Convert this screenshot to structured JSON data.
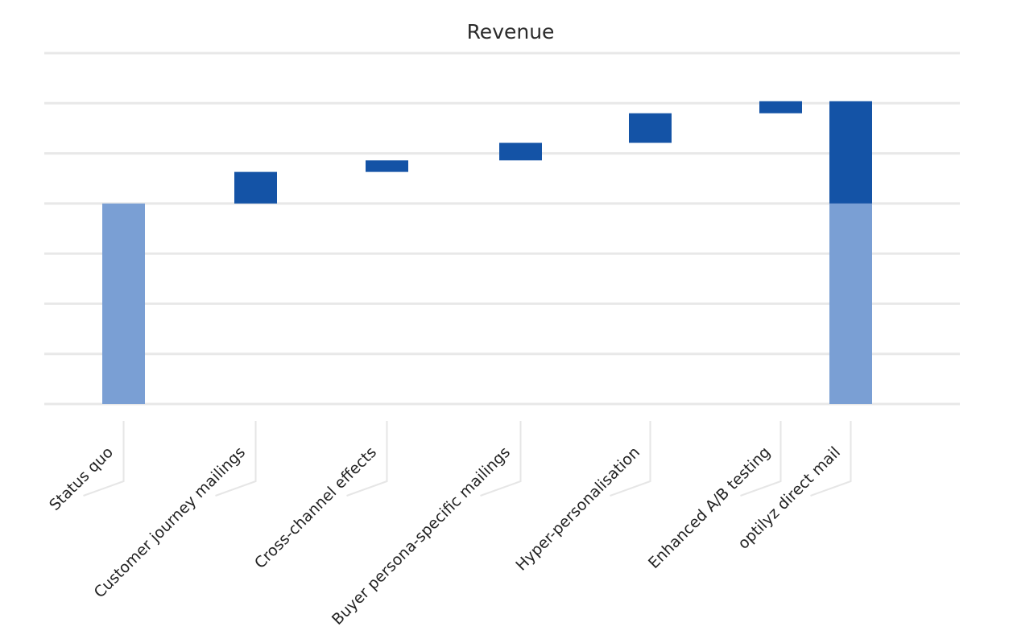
{
  "chart_data": {
    "type": "bar",
    "subtype": "waterfall",
    "title": "Revenue",
    "xlabel": "",
    "ylabel": "",
    "categories": [
      "Status quo",
      "Customer journey mailings",
      "Cross-channel effects",
      "Buyer persona-specific mailings",
      "Hyper-personalisation",
      "Enhanced A/B testing",
      "optilyz direct mail"
    ],
    "steps": [
      {
        "label": "Status quo",
        "kind": "base",
        "value": 4.0
      },
      {
        "label": "Customer journey mailings",
        "kind": "increment",
        "value": 0.63
      },
      {
        "label": "Cross-channel effects",
        "kind": "increment",
        "value": 0.23
      },
      {
        "label": "Buyer persona-specific mailings",
        "kind": "increment",
        "value": 0.35
      },
      {
        "label": "Hyper-personalisation",
        "kind": "increment",
        "value": 0.59
      },
      {
        "label": "Enhanced A/B testing",
        "kind": "increment",
        "value": 0.24
      },
      {
        "label": "optilyz direct mail",
        "kind": "total",
        "base": 4.0,
        "gain": 2.04
      }
    ],
    "ylim": [
      0,
      7
    ],
    "gridline_count": 8,
    "grid": true,
    "y_tick_labels_visible": false,
    "legend": "none",
    "colors": {
      "base": "#7a9fd4",
      "increment": "#1453a6",
      "gridline": "#e8e8e8"
    }
  }
}
